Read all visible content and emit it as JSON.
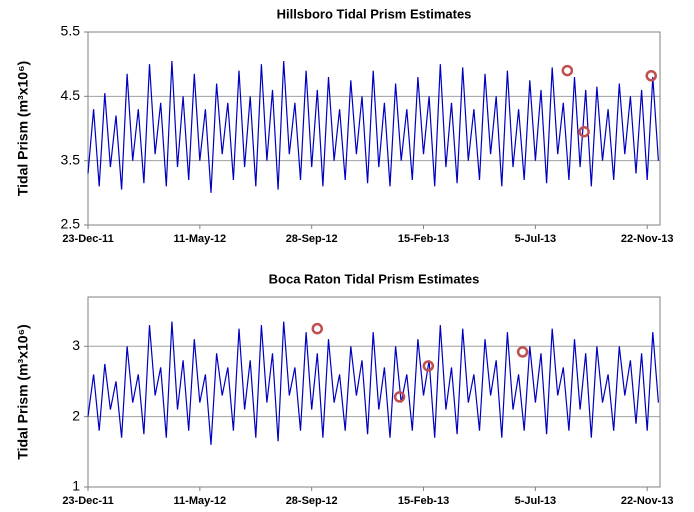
{
  "chart_data": [
    {
      "type": "line",
      "title": "Hillsboro Tidal Prism Estimates",
      "ylabel": "Tidal Prism (m³x10⁶)",
      "x": [
        0,
        7,
        14,
        21,
        28,
        35,
        42,
        49,
        56,
        63,
        70,
        77,
        84,
        91,
        98,
        105,
        112,
        119,
        126,
        133,
        140,
        147,
        154,
        161,
        168,
        175,
        182,
        189,
        196,
        203,
        210,
        217,
        224,
        231,
        238,
        245,
        252,
        259,
        266,
        273,
        280,
        287,
        294,
        301,
        308,
        315,
        322,
        329,
        336,
        343,
        350,
        357,
        364,
        371,
        378,
        385,
        392,
        399,
        406,
        413,
        420,
        427,
        434,
        441,
        448,
        455,
        462,
        469,
        476,
        483,
        490,
        497,
        504,
        511,
        518,
        525,
        532,
        539,
        546,
        553,
        560,
        567,
        574,
        581,
        588,
        595,
        602,
        609,
        616,
        623,
        630,
        637,
        644,
        651,
        658,
        665,
        672,
        679,
        686,
        693,
        700,
        707,
        714
      ],
      "values": [
        3.3,
        4.3,
        3.1,
        4.55,
        3.4,
        4.2,
        3.05,
        4.85,
        3.5,
        4.3,
        3.15,
        5.0,
        3.6,
        4.4,
        3.1,
        5.05,
        3.4,
        4.5,
        3.2,
        4.85,
        3.5,
        4.3,
        3.0,
        4.7,
        3.6,
        4.4,
        3.2,
        4.9,
        3.4,
        4.5,
        3.1,
        5.0,
        3.5,
        4.6,
        3.05,
        5.05,
        3.6,
        4.4,
        3.2,
        4.9,
        3.4,
        4.6,
        3.1,
        4.8,
        3.5,
        4.3,
        3.2,
        4.75,
        3.6,
        4.5,
        3.15,
        4.9,
        3.4,
        4.4,
        3.1,
        4.7,
        3.5,
        4.3,
        3.2,
        4.8,
        3.6,
        4.5,
        3.1,
        5.0,
        3.4,
        4.4,
        3.15,
        4.95,
        3.5,
        4.3,
        3.2,
        4.85,
        3.6,
        4.5,
        3.1,
        4.9,
        3.4,
        4.3,
        3.2,
        4.75,
        3.5,
        4.6,
        3.15,
        4.95,
        3.6,
        4.4,
        3.2,
        4.8,
        3.4,
        4.6,
        3.1,
        4.65,
        3.5,
        4.3,
        3.2,
        4.7,
        3.6,
        4.5,
        3.3,
        4.6,
        3.2,
        4.8,
        3.5
      ],
      "color": "#0000c0",
      "markers": {
        "x": [
          600,
          621,
          705
        ],
        "values": [
          4.9,
          3.95,
          4.82
        ],
        "color": "#c0504d"
      },
      "xlim": [
        0,
        716
      ],
      "xticks": [
        {
          "value": 0,
          "label": "23-Dec-11"
        },
        {
          "value": 140,
          "label": "11-May-12"
        },
        {
          "value": 280,
          "label": "28-Sep-12"
        },
        {
          "value": 420,
          "label": "15-Feb-13"
        },
        {
          "value": 560,
          "label": "5-Jul-13"
        },
        {
          "value": 700,
          "label": "22-Nov-13"
        }
      ],
      "ylim": [
        2.5,
        5.5
      ],
      "yticks": [
        2.5,
        3.5,
        4.5,
        5.5
      ],
      "grid": true
    },
    {
      "type": "line",
      "title": "Boca Raton Tidal Prism Estimates",
      "ylabel": "Tidal Prism (m³x10⁶)",
      "x": [
        0,
        7,
        14,
        21,
        28,
        35,
        42,
        49,
        56,
        63,
        70,
        77,
        84,
        91,
        98,
        105,
        112,
        119,
        126,
        133,
        140,
        147,
        154,
        161,
        168,
        175,
        182,
        189,
        196,
        203,
        210,
        217,
        224,
        231,
        238,
        245,
        252,
        259,
        266,
        273,
        280,
        287,
        294,
        301,
        308,
        315,
        322,
        329,
        336,
        343,
        350,
        357,
        364,
        371,
        378,
        385,
        392,
        399,
        406,
        413,
        420,
        427,
        434,
        441,
        448,
        455,
        462,
        469,
        476,
        483,
        490,
        497,
        504,
        511,
        518,
        525,
        532,
        539,
        546,
        553,
        560,
        567,
        574,
        581,
        588,
        595,
        602,
        609,
        616,
        623,
        630,
        637,
        644,
        651,
        658,
        665,
        672,
        679,
        686,
        693,
        700,
        707,
        714
      ],
      "values": [
        2.0,
        2.6,
        1.8,
        2.75,
        2.1,
        2.5,
        1.7,
        3.0,
        2.2,
        2.6,
        1.75,
        3.3,
        2.3,
        2.7,
        1.7,
        3.35,
        2.1,
        2.8,
        1.8,
        3.1,
        2.2,
        2.6,
        1.6,
        2.9,
        2.3,
        2.7,
        1.8,
        3.25,
        2.1,
        2.8,
        1.7,
        3.3,
        2.2,
        2.9,
        1.65,
        3.35,
        2.3,
        2.7,
        1.8,
        3.2,
        2.1,
        2.9,
        1.7,
        3.1,
        2.2,
        2.6,
        1.8,
        3.0,
        2.3,
        2.8,
        1.75,
        3.2,
        2.1,
        2.7,
        1.7,
        3.0,
        2.2,
        2.6,
        1.8,
        3.1,
        2.3,
        2.8,
        1.7,
        3.3,
        2.1,
        2.7,
        1.75,
        3.25,
        2.2,
        2.6,
        1.8,
        3.1,
        2.3,
        2.8,
        1.7,
        3.2,
        2.1,
        2.6,
        1.8,
        3.0,
        2.2,
        2.9,
        1.75,
        3.25,
        2.3,
        2.7,
        1.8,
        3.1,
        2.1,
        2.9,
        1.7,
        3.0,
        2.2,
        2.6,
        1.8,
        3.0,
        2.3,
        2.8,
        1.9,
        2.9,
        1.8,
        3.2,
        2.2
      ],
      "color": "#0000c0",
      "markers": {
        "x": [
          287,
          390,
          426,
          544
        ],
        "values": [
          3.25,
          2.28,
          2.72,
          2.92
        ],
        "color": "#c0504d"
      },
      "xlim": [
        0,
        716
      ],
      "xticks": [
        {
          "value": 0,
          "label": "23-Dec-11"
        },
        {
          "value": 140,
          "label": "11-May-12"
        },
        {
          "value": 280,
          "label": "28-Sep-12"
        },
        {
          "value": 420,
          "label": "15-Feb-13"
        },
        {
          "value": 560,
          "label": "5-Jul-13"
        },
        {
          "value": 700,
          "label": "22-Nov-13"
        }
      ],
      "ylim": [
        1,
        3.7
      ],
      "yticks": [
        1,
        2,
        3
      ],
      "grid": true
    }
  ]
}
